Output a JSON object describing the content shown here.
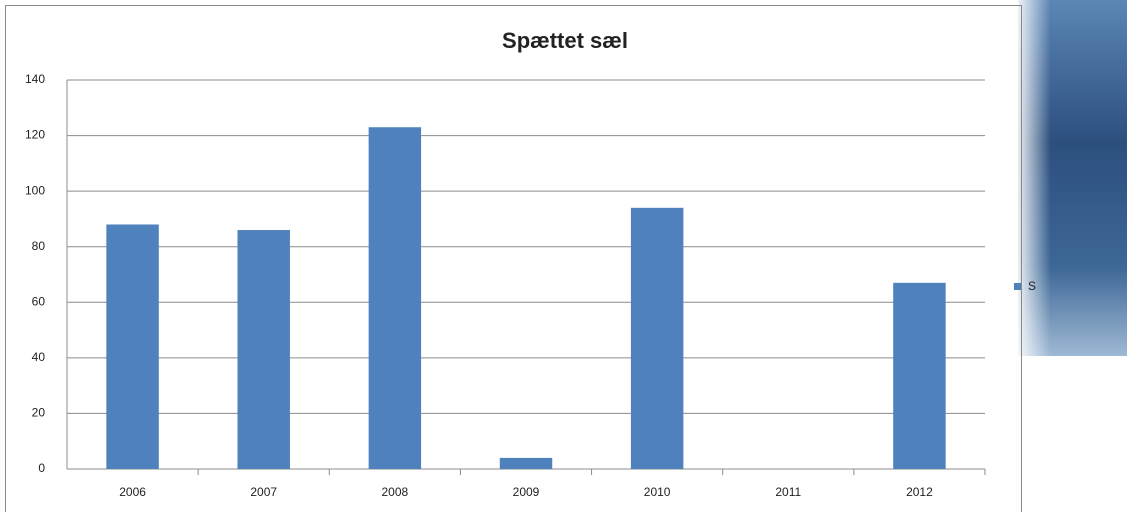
{
  "chart_data": {
    "type": "bar",
    "title": "Spættet sæl",
    "categories": [
      "2006",
      "2007",
      "2008",
      "2009",
      "2010",
      "2011",
      "2012"
    ],
    "values": [
      88,
      86,
      123,
      4,
      94,
      0,
      67
    ],
    "color": "#4f81bd",
    "ylim": [
      0,
      140
    ],
    "yticks": [
      0,
      20,
      40,
      60,
      80,
      100,
      120,
      140
    ],
    "grid": true,
    "legend_text": "S"
  }
}
